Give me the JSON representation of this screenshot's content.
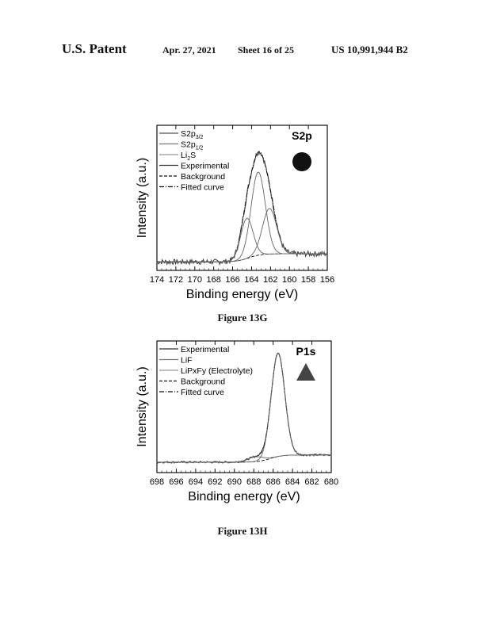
{
  "header": {
    "left": "U.S. Patent",
    "date": "Apr. 27, 2021",
    "sheet": "Sheet 16 of 25",
    "number": "US 10,991,944 B2"
  },
  "chart_data": [
    {
      "id": "fig13g",
      "type": "line",
      "caption": "Figure 13G",
      "panel_label": "S2p",
      "marker": "circle",
      "xlabel": "Binding energy (eV)",
      "ylabel": "Intensity (a.u.)",
      "xlim": [
        174,
        156
      ],
      "x_ticks": [
        174,
        172,
        170,
        168,
        166,
        164,
        162,
        160,
        158,
        156
      ],
      "y_ticks_shown": false,
      "legend": [
        {
          "label": "S2p",
          "sub": "3/2",
          "style": "solid",
          "color": "#555555"
        },
        {
          "label": "S2p",
          "sub": "1/2",
          "style": "solid",
          "color": "#777777"
        },
        {
          "label": "Li",
          "sub": "2",
          "label_after": "S",
          "style": "solid",
          "color": "#999999"
        },
        {
          "label": "Experimental",
          "style": "solid",
          "color": "#333333"
        },
        {
          "label": "Background",
          "style": "dashed",
          "color": "#111111"
        },
        {
          "label": "Fitted curve",
          "style": "dashdot",
          "color": "#111111"
        }
      ],
      "legend_position": "top-left",
      "peaks": [
        {
          "center": 163.3,
          "height": 0.62,
          "sigma": 0.75
        },
        {
          "center": 162.1,
          "height": 0.34,
          "sigma": 0.75
        },
        {
          "center": 164.5,
          "height": 0.3,
          "sigma": 0.65
        }
      ],
      "background": {
        "low": 0.04,
        "high": 0.1,
        "mid": 164.3
      },
      "noise": 0.02
    },
    {
      "id": "fig13h",
      "type": "line",
      "caption": "Figure 13H",
      "panel_label": "P1s",
      "marker": "triangle",
      "xlabel": "Binding energy (eV)",
      "ylabel": "Intensity (a.u.)",
      "xlim": [
        698,
        680
      ],
      "x_ticks": [
        698,
        696,
        694,
        692,
        690,
        688,
        686,
        684,
        682,
        680
      ],
      "y_ticks_shown": false,
      "legend": [
        {
          "label": "Experimental",
          "style": "solid",
          "color": "#333333"
        },
        {
          "label": "LiF",
          "style": "solid",
          "color": "#777777"
        },
        {
          "label": "LiPxFy (Electrolyte)",
          "style": "solid",
          "color": "#999999"
        },
        {
          "label": "Background",
          "style": "dashed",
          "color": "#111111"
        },
        {
          "label": "Fitted curve",
          "style": "dashdot",
          "color": "#111111"
        }
      ],
      "legend_position": "top-left",
      "peaks": [
        {
          "center": 685.5,
          "height": 0.86,
          "sigma": 0.7
        },
        {
          "center": 687.8,
          "height": 0.04,
          "sigma": 0.8
        }
      ],
      "background": {
        "low": 0.06,
        "high": 0.12,
        "mid": 686.3
      },
      "noise": 0.008
    }
  ]
}
